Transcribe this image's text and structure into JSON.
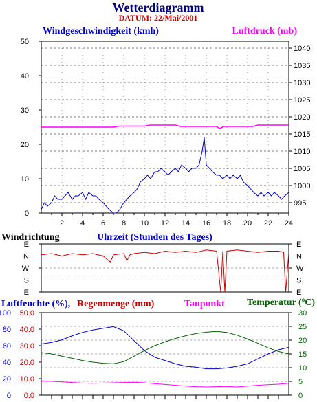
{
  "title": "Wetterdiagramm",
  "subtitle": "DATUM: 22/Mai/2001",
  "colors": {
    "title": "#000080",
    "subtitle": "#cc0000",
    "wind": "#0000cc",
    "pressure": "#ff00ff",
    "direction": "#cc0000",
    "humidity": "#0000cc",
    "rain": "#cc0000",
    "dewpoint": "#ff00ff",
    "temperature": "#006600",
    "frame": "#000000",
    "grid": "#555555"
  },
  "chart_data": [
    {
      "type": "line",
      "name": "wind-pressure",
      "left_label": "Windgeschwindigkeit (kmh)",
      "right_label": "Luftdruck (mb)",
      "xlabel": "",
      "xticks": [
        2,
        4,
        6,
        8,
        10,
        12,
        14,
        16,
        18,
        20,
        22,
        24
      ],
      "xlim": [
        0,
        24
      ],
      "ylim_left": [
        0,
        50
      ],
      "yticks_left": [
        0,
        10,
        20,
        30,
        40,
        50
      ],
      "ylim_right": [
        992,
        1042
      ],
      "yticks_right": [
        995,
        1000,
        1005,
        1010,
        1015,
        1020,
        1025,
        1030,
        1035,
        1040
      ],
      "grid": true,
      "series": [
        {
          "key": "wind",
          "axis": "left",
          "points": [
            [
              0,
              1
            ],
            [
              0.3,
              3
            ],
            [
              0.6,
              2
            ],
            [
              1,
              3
            ],
            [
              1.3,
              5
            ],
            [
              1.6,
              4
            ],
            [
              2,
              4
            ],
            [
              2.3,
              5
            ],
            [
              2.6,
              6
            ],
            [
              3,
              4
            ],
            [
              3.3,
              5
            ],
            [
              3.6,
              5
            ],
            [
              4,
              6
            ],
            [
              4.3,
              4
            ],
            [
              4.6,
              6
            ],
            [
              5,
              5
            ],
            [
              5.3,
              5
            ],
            [
              5.6,
              4
            ],
            [
              6,
              3
            ],
            [
              6.3,
              2
            ],
            [
              6.6,
              1
            ],
            [
              7,
              0
            ],
            [
              7.3,
              -1
            ],
            [
              7.6,
              1
            ],
            [
              8,
              3
            ],
            [
              8.3,
              4
            ],
            [
              8.6,
              5
            ],
            [
              9,
              6
            ],
            [
              9.3,
              7
            ],
            [
              9.6,
              9
            ],
            [
              10,
              10
            ],
            [
              10.3,
              11
            ],
            [
              10.6,
              10
            ],
            [
              11,
              12
            ],
            [
              11.3,
              12
            ],
            [
              11.6,
              13
            ],
            [
              12,
              12
            ],
            [
              12.3,
              11
            ],
            [
              12.6,
              12
            ],
            [
              13,
              13
            ],
            [
              13.3,
              12
            ],
            [
              13.6,
              14
            ],
            [
              14,
              13
            ],
            [
              14.3,
              12
            ],
            [
              14.6,
              13
            ],
            [
              15,
              13
            ],
            [
              15.3,
              14
            ],
            [
              15.6,
              18
            ],
            [
              15.8,
              22
            ],
            [
              16,
              14
            ],
            [
              16.3,
              13
            ],
            [
              16.6,
              12
            ],
            [
              17,
              11
            ],
            [
              17.3,
              11
            ],
            [
              17.6,
              10
            ],
            [
              18,
              11
            ],
            [
              18.3,
              10
            ],
            [
              18.6,
              11
            ],
            [
              19,
              10
            ],
            [
              19.3,
              11
            ],
            [
              19.6,
              9
            ],
            [
              20,
              8
            ],
            [
              20.3,
              7
            ],
            [
              20.6,
              6
            ],
            [
              21,
              5
            ],
            [
              21.3,
              6
            ],
            [
              21.6,
              5
            ],
            [
              22,
              6
            ],
            [
              22.3,
              5
            ],
            [
              22.6,
              6
            ],
            [
              23,
              5
            ],
            [
              23.3,
              4
            ],
            [
              23.6,
              5
            ],
            [
              24,
              6
            ]
          ]
        },
        {
          "key": "pressure",
          "axis": "right",
          "points": [
            [
              0,
              1017
            ],
            [
              7,
              1017
            ],
            [
              7.5,
              1017.3
            ],
            [
              10,
              1017.3
            ],
            [
              10.5,
              1017.6
            ],
            [
              13,
              1017.6
            ],
            [
              13.5,
              1017.2
            ],
            [
              17,
              1017.2
            ],
            [
              17.3,
              1016.6
            ],
            [
              17.7,
              1017.2
            ],
            [
              20.5,
              1017.2
            ],
            [
              21,
              1017.6
            ],
            [
              24,
              1017.6
            ]
          ]
        }
      ]
    },
    {
      "type": "line",
      "name": "windrichtung",
      "left_label": "Windrichtung",
      "xlabel": "Uhrzeit (Stunden des Tages)",
      "yticks_left": [
        "E",
        "N",
        "W",
        "S",
        "E"
      ],
      "yticks_right": [
        "E",
        "N",
        "W",
        "S",
        "E"
      ],
      "xlim": [
        0,
        24
      ],
      "ylim": [
        0,
        4
      ],
      "series": [
        {
          "key": "direction",
          "points": [
            [
              0,
              3.1
            ],
            [
              1,
              3.2
            ],
            [
              2,
              3.0
            ],
            [
              3,
              3.2
            ],
            [
              4,
              3.1
            ],
            [
              5,
              3.2
            ],
            [
              6,
              3.0
            ],
            [
              6.7,
              2.5
            ],
            [
              7,
              3.1
            ],
            [
              8,
              3.2
            ],
            [
              8.3,
              2.6
            ],
            [
              8.6,
              3.1
            ],
            [
              9,
              3.2
            ],
            [
              10,
              3.3
            ],
            [
              11,
              3.2
            ],
            [
              12,
              3.4
            ],
            [
              13,
              3.3
            ],
            [
              14,
              3.4
            ],
            [
              15,
              3.3
            ],
            [
              16,
              3.5
            ],
            [
              17,
              3.4
            ],
            [
              17.4,
              0
            ],
            [
              17.6,
              3.4
            ],
            [
              17.8,
              0
            ],
            [
              18,
              3.4
            ],
            [
              19,
              3.5
            ],
            [
              20,
              3.4
            ],
            [
              21,
              3.3
            ],
            [
              22,
              3.4
            ],
            [
              23,
              3.4
            ],
            [
              23.5,
              3.3
            ],
            [
              23.7,
              0
            ],
            [
              24,
              3.3
            ]
          ]
        }
      ]
    },
    {
      "type": "line",
      "name": "feuchte-temperatur",
      "label_humidity": "Luftfeuchte (%),",
      "label_rain": "Regenmenge (mm)",
      "label_dewpoint": "Taupunkt",
      "label_temperature": "Temperatur (",
      "label_temperature_unit": "o",
      "label_temperature_end": "C)",
      "xlim": [
        0,
        24
      ],
      "ylim_humidity": [
        0,
        100
      ],
      "yticks_humidity": [
        0,
        20,
        40,
        60,
        80,
        100
      ],
      "ylim_rain": [
        0,
        50
      ],
      "yticks_rain": [
        "0.0",
        "10.0",
        "20.0",
        "30.0",
        "40.0",
        "50.0"
      ],
      "ylim_temperature": [
        0,
        30
      ],
      "yticks_temperature": [
        0,
        5,
        10,
        15,
        20,
        25,
        30
      ],
      "grid": true,
      "series": [
        {
          "key": "humidity",
          "axis": "humidity",
          "points": [
            [
              0,
              62
            ],
            [
              1,
              64
            ],
            [
              2,
              67
            ],
            [
              3,
              72
            ],
            [
              4,
              76
            ],
            [
              5,
              79
            ],
            [
              6,
              81
            ],
            [
              7,
              83
            ],
            [
              8,
              78
            ],
            [
              9,
              66
            ],
            [
              10,
              54
            ],
            [
              11,
              46
            ],
            [
              12,
              42
            ],
            [
              13,
              38
            ],
            [
              14,
              35
            ],
            [
              15,
              34
            ],
            [
              16,
              32
            ],
            [
              17,
              32
            ],
            [
              18,
              33
            ],
            [
              19,
              35
            ],
            [
              20,
              38
            ],
            [
              21,
              44
            ],
            [
              22,
              50
            ],
            [
              23,
              55
            ],
            [
              24,
              58
            ]
          ]
        },
        {
          "key": "dewpoint",
          "axis": "temperature",
          "points": [
            [
              0,
              5.2
            ],
            [
              1,
              5.0
            ],
            [
              2,
              4.8
            ],
            [
              3,
              4.6
            ],
            [
              4,
              4.4
            ],
            [
              5,
              4.3
            ],
            [
              6,
              4.4
            ],
            [
              7,
              4.5
            ],
            [
              8,
              4.6
            ],
            [
              9,
              4.7
            ],
            [
              10,
              4.5
            ],
            [
              11,
              4.2
            ],
            [
              12,
              3.9
            ],
            [
              13,
              3.6
            ],
            [
              14,
              3.3
            ],
            [
              15,
              3.1
            ],
            [
              16,
              3.0
            ],
            [
              17,
              3.1
            ],
            [
              18,
              3.2
            ],
            [
              19,
              3.0
            ],
            [
              20,
              3.3
            ],
            [
              21,
              3.6
            ],
            [
              22,
              3.8
            ],
            [
              23,
              4.0
            ],
            [
              24,
              4.3
            ]
          ]
        },
        {
          "key": "temperature",
          "axis": "temperature",
          "points": [
            [
              0,
              15.5
            ],
            [
              1,
              15.0
            ],
            [
              2,
              14.2
            ],
            [
              3,
              13.4
            ],
            [
              4,
              12.6
            ],
            [
              5,
              12.0
            ],
            [
              6,
              11.6
            ],
            [
              7,
              11.4
            ],
            [
              8,
              12.2
            ],
            [
              9,
              14.2
            ],
            [
              10,
              16.2
            ],
            [
              11,
              18.0
            ],
            [
              12,
              19.4
            ],
            [
              13,
              20.6
            ],
            [
              14,
              21.6
            ],
            [
              15,
              22.4
            ],
            [
              16,
              22.9
            ],
            [
              17,
              23.2
            ],
            [
              18,
              22.8
            ],
            [
              19,
              21.8
            ],
            [
              20,
              20.4
            ],
            [
              21,
              18.9
            ],
            [
              22,
              17.2
            ],
            [
              23,
              15.9
            ],
            [
              24,
              15.0
            ]
          ]
        }
      ]
    }
  ]
}
